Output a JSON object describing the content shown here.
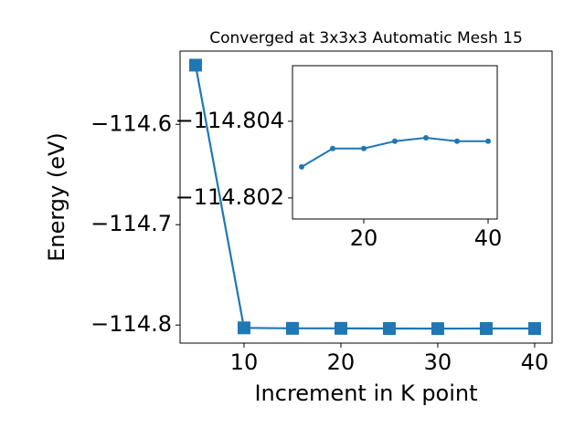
{
  "chart_data": [
    {
      "type": "line",
      "title": "Converged at 3x3x3 Automatic Mesh 15",
      "x_label": "Increment in K point",
      "y_label": "Energy (eV)",
      "x": [
        5,
        10,
        15,
        20,
        25,
        30,
        35,
        40
      ],
      "series": [
        {
          "color": "#1f77b4",
          "marker": "square",
          "values": [
            -114.541,
            -114.80281,
            -114.80329,
            -114.80329,
            -114.80348,
            -114.80357,
            -114.80348,
            -114.80348
          ]
        }
      ],
      "xlim": [
        3.4,
        41.8
      ],
      "xticks": [
        10,
        20,
        30,
        40
      ],
      "ylim": [
        -114.818,
        -114.527
      ],
      "yticks": [
        {
          "value": -114.8,
          "label": "−114.8"
        },
        {
          "value": -114.7,
          "label": "−114.7"
        },
        {
          "value": -114.6,
          "label": "−114.6"
        }
      ]
    },
    {
      "type": "line",
      "x": [
        10,
        15,
        20,
        25,
        30,
        35,
        40
      ],
      "series": [
        {
          "color": "#1f77b4",
          "marker": "circle",
          "values": [
            -114.80281,
            -114.80329,
            -114.80329,
            -114.80348,
            -114.80357,
            -114.80348,
            -114.80348
          ]
        }
      ],
      "xlim": [
        8.53,
        41.47
      ],
      "xticks": [
        20,
        40
      ],
      "ylim": [
        -114.80145,
        -114.80545
      ],
      "yticks": [
        {
          "value": -114.802,
          "label": "−114.802"
        },
        {
          "value": -114.804,
          "label": "−114.804"
        }
      ]
    }
  ]
}
